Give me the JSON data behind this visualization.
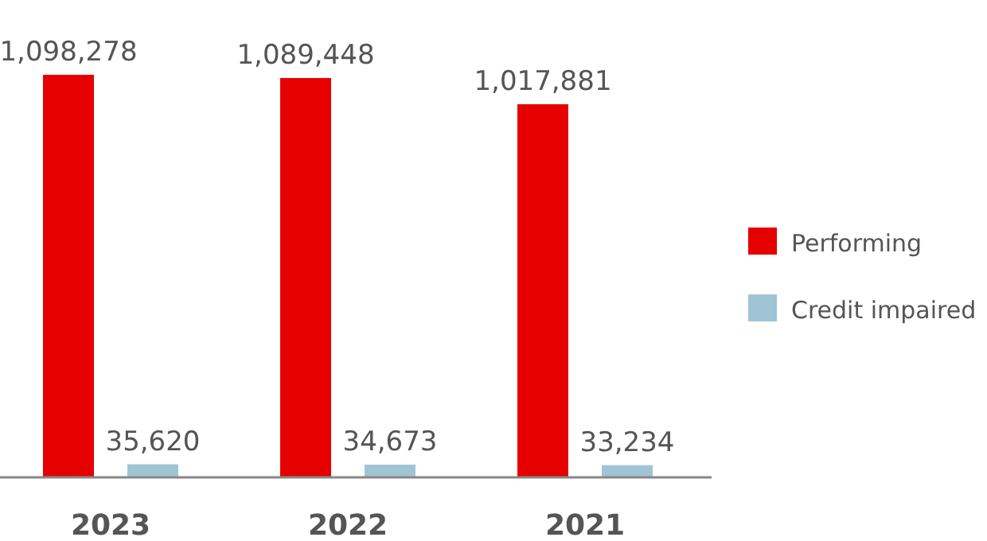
{
  "chart_data": {
    "type": "bar",
    "categories": [
      "2023",
      "2022",
      "2021"
    ],
    "series": [
      {
        "name": "Performing",
        "color": "#e60000",
        "values": [
          1098278,
          1089448,
          1017881
        ],
        "value_labels": [
          "1,098,278",
          "1,089,448",
          "1,017,881"
        ]
      },
      {
        "name": "Credit impaired",
        "color": "#9fc4d4",
        "values": [
          35620,
          34673,
          33234
        ],
        "value_labels": [
          "35,620",
          "34,673",
          "33,234"
        ]
      }
    ],
    "legend": "right"
  }
}
